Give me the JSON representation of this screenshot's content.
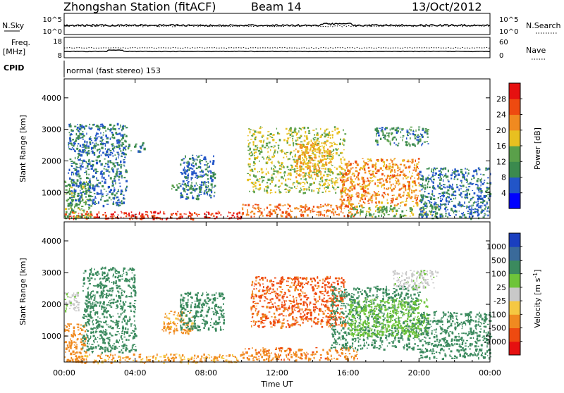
{
  "header": {
    "station": "Zhongshan Station (fitACF)",
    "beam": "Beam 14",
    "date": "13/Oct/2012"
  },
  "strips": {
    "nsky_label": "N.Sky",
    "nsky_ticks": [
      "10^5",
      "10^0"
    ],
    "nsearch_label": "N.Search",
    "nsearch_ticks": [
      "10^5",
      "10^0"
    ],
    "freq_label": "Freq.",
    "freq_unit": "[MHz]",
    "freq_ticks": [
      "18",
      "8"
    ],
    "nave_label": "Nave",
    "nave_ticks": [
      "60",
      "0"
    ],
    "cpid_label": "CPID",
    "cpid_text": "normal (fast stereo) 153"
  },
  "chart_data": [
    {
      "type": "heatmap",
      "name": "power",
      "ylabel": "Slant Range [km]",
      "xlabel": "Time UT",
      "x_ticks": [
        "00:00",
        "04:00",
        "08:00",
        "12:00",
        "16:00",
        "20:00",
        "00:00"
      ],
      "xlim_hours": [
        0,
        24
      ],
      "y_ticks": [
        "1000",
        "2000",
        "3000",
        "4000"
      ],
      "y_tick_values": [
        1000,
        2000,
        3000,
        4000
      ],
      "ylim": [
        180,
        4600
      ],
      "colorbar": {
        "label": "Power [dB]",
        "ticks": [
          "4",
          "8",
          "12",
          "16",
          "20",
          "24",
          "28"
        ],
        "tick_values": [
          4,
          8,
          12,
          16,
          20,
          24,
          28
        ],
        "range": [
          0,
          32
        ],
        "colors": [
          "#0000ff",
          "#2255c8",
          "#3b8a4e",
          "#5aa04a",
          "#e8c020",
          "#f08a20",
          "#ee4a10",
          "#e61010"
        ]
      },
      "clusters": [
        {
          "t": [
            0,
            10
          ],
          "r": [
            180,
            420
          ],
          "value": 28
        },
        {
          "t": [
            0,
            1.5
          ],
          "r": [
            200,
            1400
          ],
          "value": 14
        },
        {
          "t": [
            0.2,
            3.5
          ],
          "r": [
            600,
            3200
          ],
          "value": 8
        },
        {
          "t": [
            3.5,
            4.5
          ],
          "r": [
            2300,
            2600
          ],
          "value": 10
        },
        {
          "t": [
            6,
            7.8
          ],
          "r": [
            1100,
            1300
          ],
          "value": 12
        },
        {
          "t": [
            6.5,
            8.5
          ],
          "r": [
            800,
            2200
          ],
          "value": 8
        },
        {
          "t": [
            10,
            16.5
          ],
          "r": [
            250,
            650
          ],
          "value": 24
        },
        {
          "t": [
            10.3,
            15.8
          ],
          "r": [
            1000,
            3100
          ],
          "value": 16
        },
        {
          "t": [
            13,
            15
          ],
          "r": [
            1500,
            2600
          ],
          "value": 20
        },
        {
          "t": [
            15.5,
            20
          ],
          "r": [
            600,
            2100
          ],
          "value": 22
        },
        {
          "t": [
            16,
            21
          ],
          "r": [
            250,
            600
          ],
          "value": 14
        },
        {
          "t": [
            17.5,
            20.5
          ],
          "r": [
            2500,
            3100
          ],
          "value": 10
        },
        {
          "t": [
            20,
            24
          ],
          "r": [
            200,
            1800
          ],
          "value": 8
        }
      ]
    },
    {
      "type": "heatmap",
      "name": "velocity",
      "ylabel": "Slant Range [km]",
      "xlabel": "Time UT",
      "x_ticks": [
        "00:00",
        "04:00",
        "08:00",
        "12:00",
        "16:00",
        "20:00",
        "00:00"
      ],
      "xlim_hours": [
        0,
        24
      ],
      "y_ticks": [
        "1000",
        "2000",
        "3000",
        "4000"
      ],
      "y_tick_values": [
        1000,
        2000,
        3000,
        4000
      ],
      "ylim": [
        180,
        4600
      ],
      "colorbar": {
        "label": "Velocity [m s",
        "label_sup": "-1",
        "label_end": "]",
        "ticks": [
          "1000",
          "500",
          "100",
          "25",
          "-25",
          "-100",
          "-500",
          "-1000"
        ],
        "colors": [
          "#1a3fbf",
          "#3a6a9a",
          "#3b8a5e",
          "#6ec43a",
          "#c8c8c8",
          "#f5c842",
          "#f08a20",
          "#ee4a10",
          "#e61010"
        ]
      },
      "clusters": [
        {
          "t": [
            0,
            1.2
          ],
          "r": [
            200,
            1400
          ],
          "value": -200
        },
        {
          "t": [
            0,
            0.8
          ],
          "r": [
            1800,
            2400
          ],
          "value": 15
        },
        {
          "t": [
            0.5,
            10
          ],
          "r": [
            180,
            450
          ],
          "value": -120
        },
        {
          "t": [
            1,
            4
          ],
          "r": [
            500,
            3200
          ],
          "value": 300
        },
        {
          "t": [
            5.5,
            7.2
          ],
          "r": [
            1100,
            1800
          ],
          "value": -120
        },
        {
          "t": [
            6.5,
            9
          ],
          "r": [
            1200,
            2400
          ],
          "value": 300
        },
        {
          "t": [
            10,
            16.5
          ],
          "r": [
            250,
            650
          ],
          "value": -400
        },
        {
          "t": [
            10.5,
            15.8
          ],
          "r": [
            1300,
            2900
          ],
          "value": -600
        },
        {
          "t": [
            15,
            20
          ],
          "r": [
            600,
            2600
          ],
          "value": 300
        },
        {
          "t": [
            16,
            20.5
          ],
          "r": [
            1000,
            2200
          ],
          "value": 60
        },
        {
          "t": [
            18.5,
            21
          ],
          "r": [
            2500,
            3100
          ],
          "value": 10
        },
        {
          "t": [
            20,
            24
          ],
          "r": [
            300,
            1800
          ],
          "value": 300
        }
      ]
    }
  ]
}
